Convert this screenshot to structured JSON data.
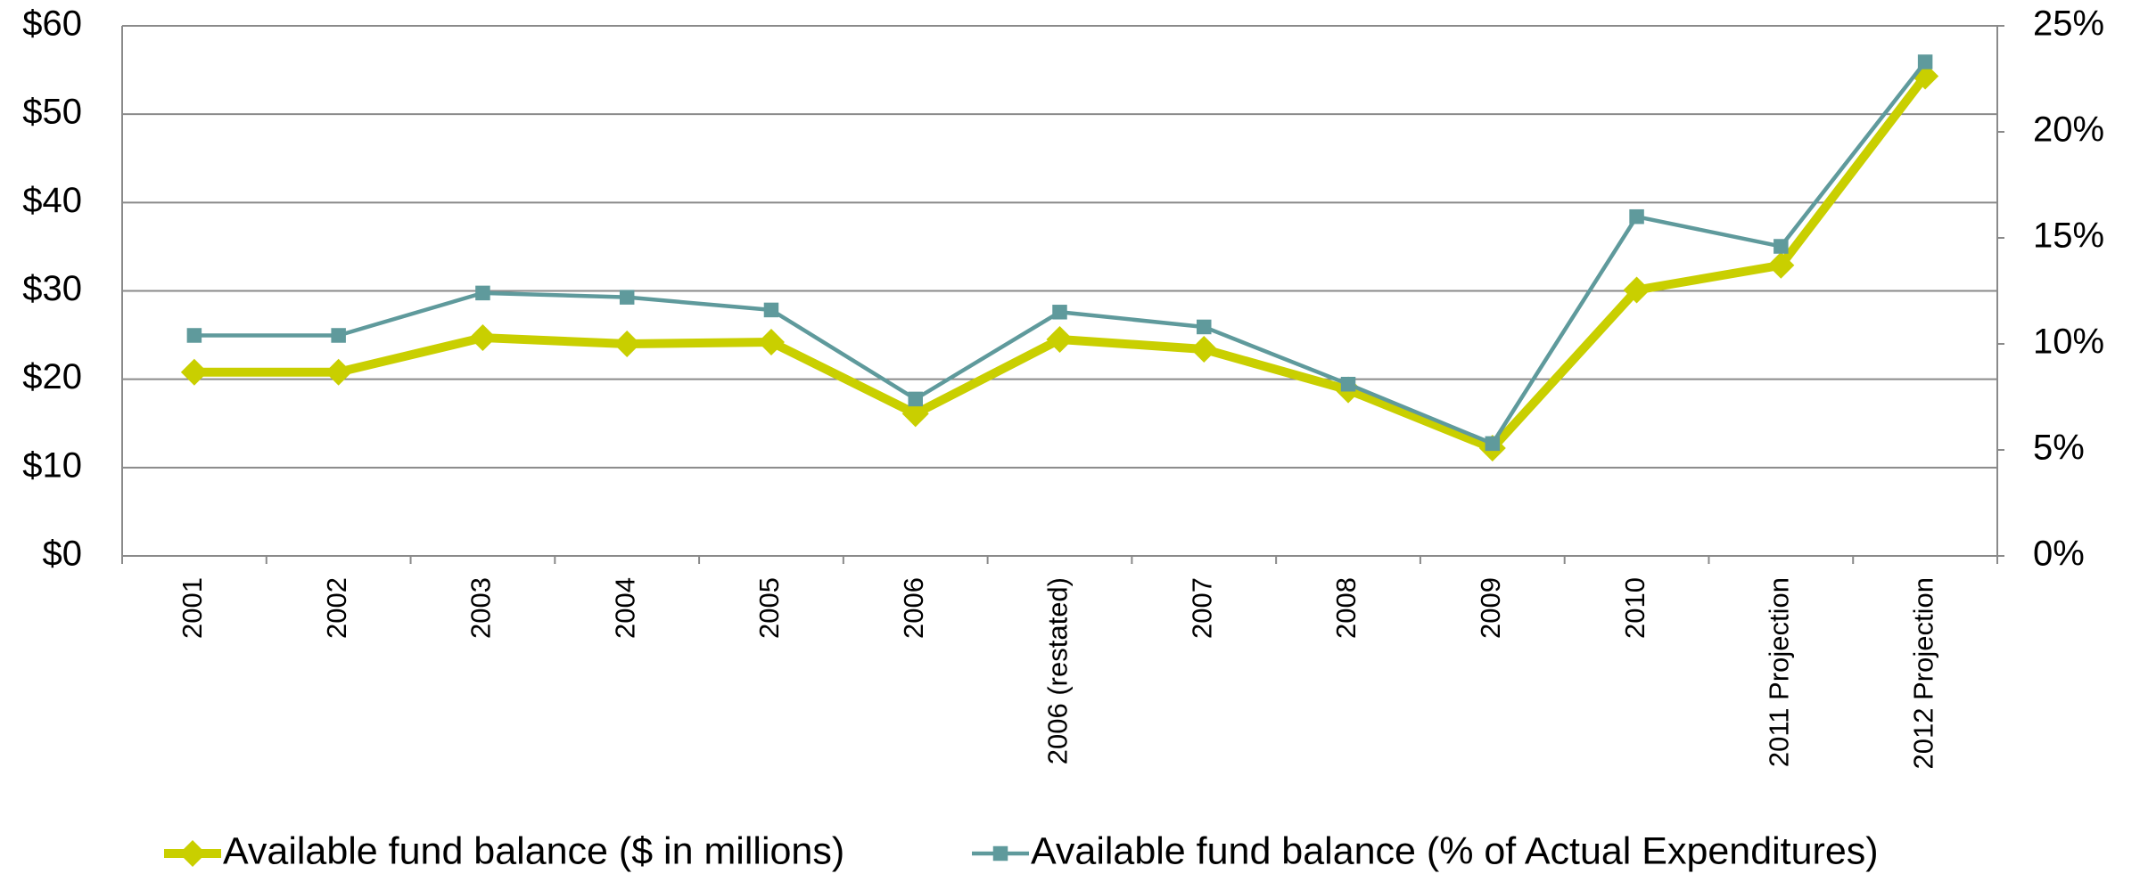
{
  "chart_data": {
    "type": "line",
    "categories": [
      "2001",
      "2002",
      "2003",
      "2004",
      "2005",
      "2006",
      "2006 (restated)",
      "2007",
      "2008",
      "2009",
      "2010",
      "2011 Projection",
      "2012 Projection"
    ],
    "series": [
      {
        "name": "Available fund balance ($ in millions)",
        "color": "#c9cf00",
        "marker": "diamond",
        "values": [
          20.8,
          20.8,
          24.7,
          24.0,
          24.2,
          16.1,
          24.5,
          23.4,
          18.8,
          12.2,
          30.1,
          32.9,
          54.3
        ]
      },
      {
        "name": "Available fund balance (% of Actual Expenditures)",
        "color": "#5f9a9c",
        "marker": "square",
        "axis": "y2",
        "values": [
          10.4,
          10.4,
          12.4,
          12.2,
          11.6,
          7.4,
          11.5,
          10.8,
          8.1,
          5.3,
          16.0,
          14.6,
          23.3
        ]
      }
    ],
    "ylim": [
      0,
      60
    ],
    "yticks": [
      {
        "value": 0,
        "label": "$0"
      },
      {
        "value": 10,
        "label": "$10"
      },
      {
        "value": 20,
        "label": "$20"
      },
      {
        "value": 30,
        "label": "$30"
      },
      {
        "value": 40,
        "label": "$40"
      },
      {
        "value": 50,
        "label": "$50"
      },
      {
        "value": 60,
        "label": "$60"
      }
    ],
    "y2lim": [
      0,
      25
    ],
    "y2ticks": [
      {
        "value": 0,
        "label": "0%"
      },
      {
        "value": 5,
        "label": "5%"
      },
      {
        "value": 10,
        "label": "10%"
      },
      {
        "value": 15,
        "label": "15%"
      },
      {
        "value": 20,
        "label": "20%"
      },
      {
        "value": 25,
        "label": "25%"
      }
    ],
    "grid": true,
    "legend": "bottom"
  }
}
